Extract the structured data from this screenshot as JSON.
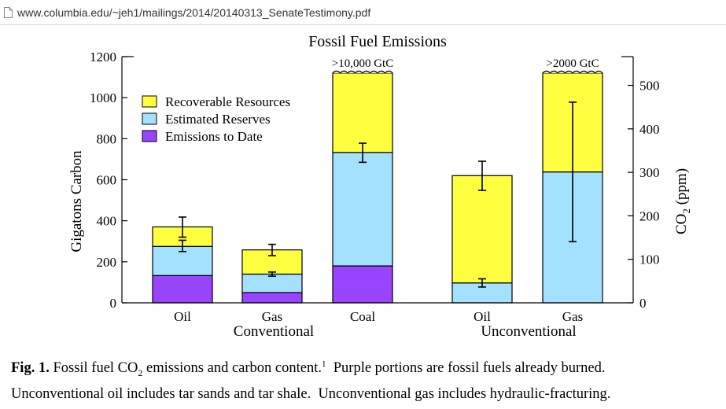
{
  "browser": {
    "url": "www.columbia.edu/~jeh1/mailings/2014/20140313_SenateTestimony.pdf"
  },
  "caption": {
    "label": "Fig. 1.",
    "line1_pre": "Fossil fuel CO",
    "line1_sub": "2",
    "line1_mid": " emissions and carbon content.",
    "line1_sup": "1",
    "line1_post": "  Purple portions are fossil fuels already burned.",
    "line2": "Unconventional oil includes tar sands and tar shale.  Unconventional gas includes hydraulic-fracturing."
  },
  "chart_data": {
    "type": "bar",
    "title": "Fossil Fuel Emissions",
    "ylabel": "Gigatons Carbon",
    "y2label_pre": "CO",
    "y2label_sub": "2",
    "y2label_post": " (ppm)",
    "ylim": [
      0,
      1200
    ],
    "yticks": [
      "0",
      "200",
      "400",
      "600",
      "800",
      "1000",
      "1200"
    ],
    "y2ticks": [
      "0",
      "100",
      "200",
      "300",
      "400",
      "500"
    ],
    "y2_ppm_per_gtc": 0.4717,
    "categories": [
      "Oil",
      "Gas",
      "Coal",
      "Oil",
      "Gas"
    ],
    "groups": [
      {
        "name": "Conventional",
        "categories": [
          0,
          1,
          2
        ]
      },
      {
        "name": "Unconventional",
        "categories": [
          3,
          4
        ]
      }
    ],
    "series": [
      {
        "name": "Emissions to Date",
        "color": "#9945FF",
        "values": [
          133,
          50,
          180,
          0,
          0
        ]
      },
      {
        "name": "Estimated Reserves",
        "color": "#A3E1FF",
        "values": [
          142,
          90,
          553,
          97,
          638
        ]
      },
      {
        "name": "Recoverable Resources",
        "color": "#FFFF40",
        "values": [
          95,
          118,
          387,
          523,
          482
        ]
      }
    ],
    "error_bars": [
      {
        "category": 0,
        "center": 275,
        "low": 250,
        "high": 305
      },
      {
        "category": 0,
        "center": 370,
        "low": 320,
        "high": 418
      },
      {
        "category": 1,
        "center": 140,
        "low": 130,
        "high": 150
      },
      {
        "category": 1,
        "center": 258,
        "low": 230,
        "high": 285
      },
      {
        "category": 2,
        "center": 733,
        "low": 685,
        "high": 778
      },
      {
        "category": 3,
        "center": 97,
        "low": 77,
        "high": 117
      },
      {
        "category": 3,
        "center": 620,
        "low": 548,
        "high": 690
      },
      {
        "category": 4,
        "center": 638,
        "low": 298,
        "high": 978
      }
    ],
    "annotations": [
      {
        "category": 2,
        "text": ">10,000 GtC"
      },
      {
        "category": 4,
        "text": ">2000 GtC"
      }
    ],
    "legend_position": "top-left",
    "grid": false
  }
}
